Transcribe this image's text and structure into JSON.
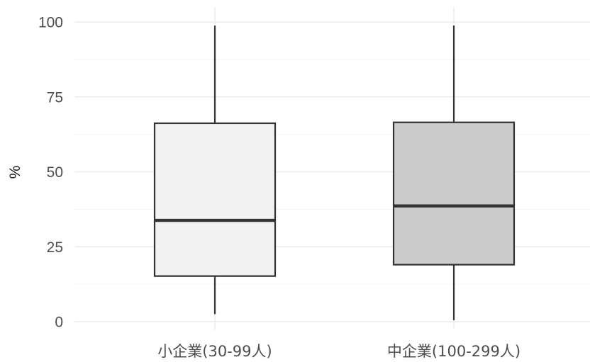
{
  "chart_data": {
    "type": "boxplot",
    "ylabel": "%",
    "xlabel": "",
    "ylim": [
      0,
      100
    ],
    "yticks": [
      0,
      25,
      50,
      75,
      100
    ],
    "grid": true,
    "categories": [
      "小企業(30-99人)",
      "中企業(100-299人)"
    ],
    "boxes": [
      {
        "category": "小企業(30-99人)",
        "whisker_low": 2.5,
        "q1": 15.2,
        "median": 33.8,
        "q3": 66.2,
        "whisker_high": 98.8,
        "fill": "#f2f2f2"
      },
      {
        "category": "中企業(100-299人)",
        "whisker_low": 0.5,
        "q1": 19.0,
        "median": 38.6,
        "q3": 66.5,
        "whisker_high": 98.8,
        "fill": "#cccccc"
      }
    ]
  }
}
